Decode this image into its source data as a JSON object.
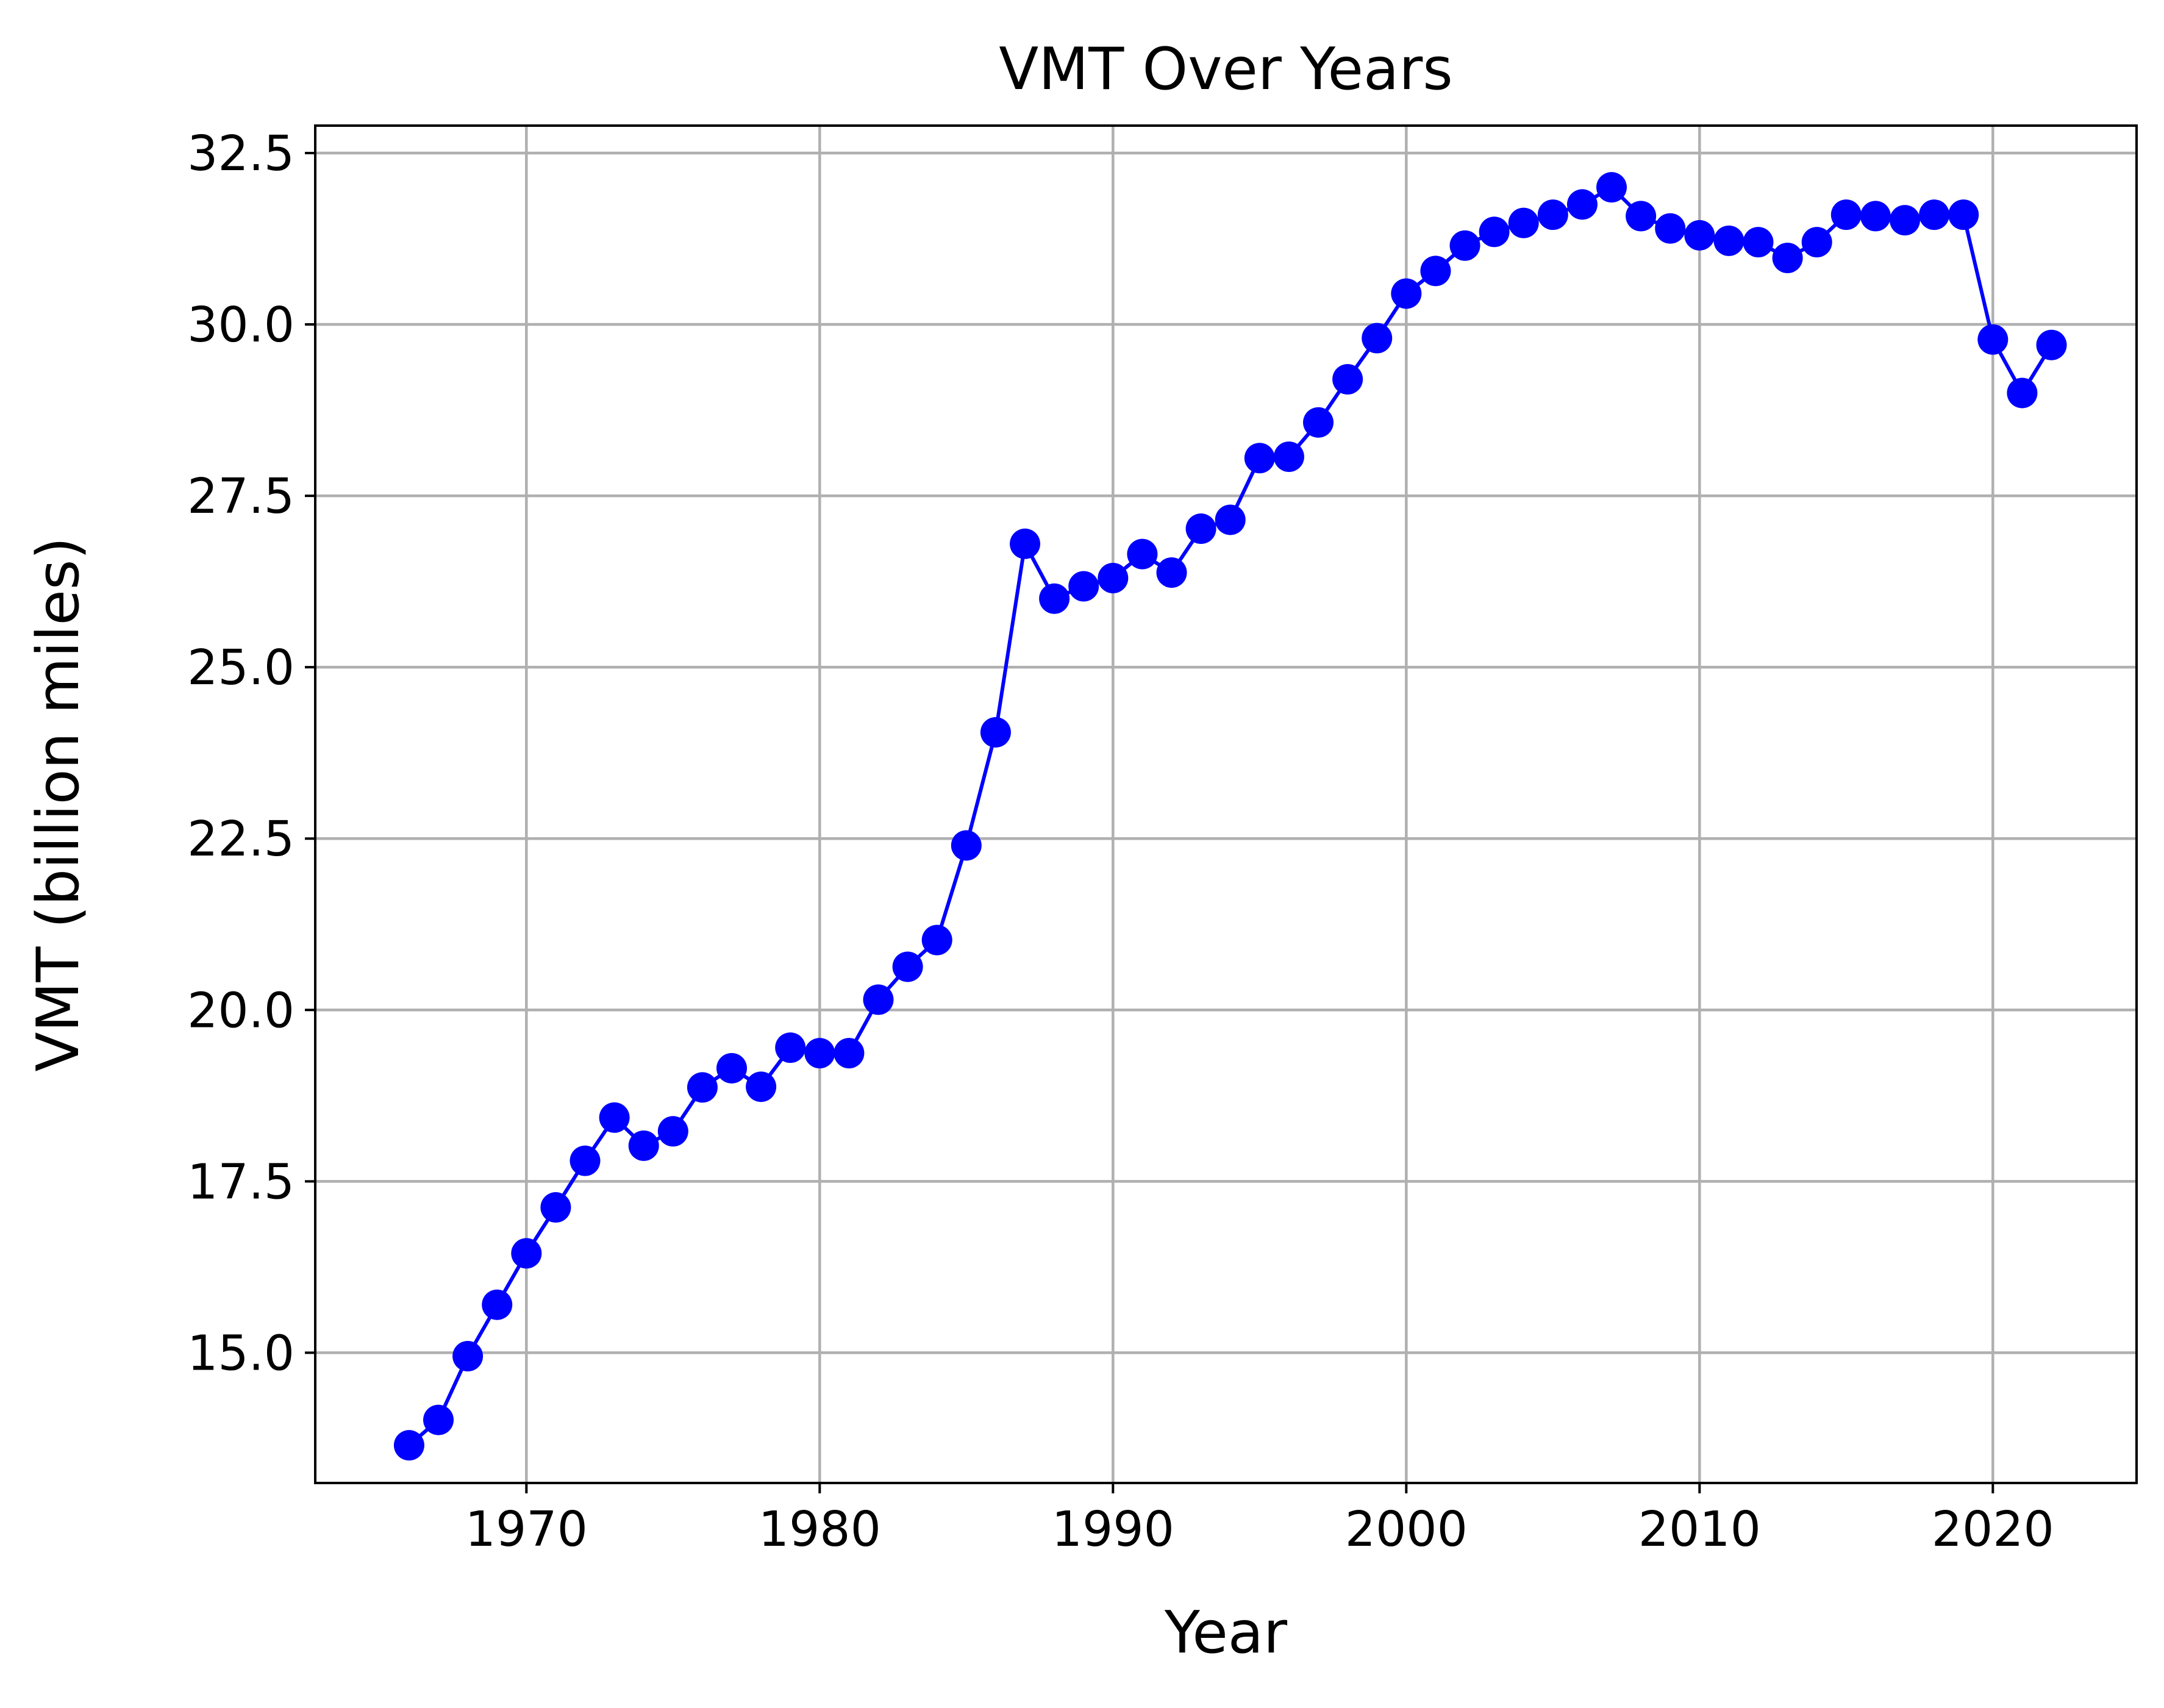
{
  "chart_data": {
    "type": "line",
    "title": "VMT Over Years",
    "xlabel": "Year",
    "ylabel": "VMT (billion miles)",
    "xlim": [
      1962.8,
      2024.9
    ],
    "ylim": [
      13.1,
      32.9
    ],
    "xticks": [
      1970,
      1980,
      1990,
      2000,
      2010,
      2020
    ],
    "yticks": [
      15.0,
      17.5,
      20.0,
      22.5,
      25.0,
      27.5,
      30.0,
      32.5
    ],
    "grid": true,
    "legend": "none",
    "series": [
      {
        "color": "#0000ff",
        "marker": "circle",
        "x": [
          1966,
          1967,
          1968,
          1969,
          1970,
          1971,
          1972,
          1973,
          1974,
          1975,
          1976,
          1977,
          1978,
          1979,
          1980,
          1981,
          1982,
          1983,
          1984,
          1985,
          1986,
          1987,
          1988,
          1989,
          1990,
          1991,
          1992,
          1993,
          1994,
          1995,
          1996,
          1997,
          1998,
          1999,
          2000,
          2001,
          2002,
          2003,
          2004,
          2005,
          2006,
          2007,
          2008,
          2009,
          2010,
          2011,
          2012,
          2013,
          2014,
          2015,
          2016,
          2017,
          2018,
          2019,
          2020,
          2021,
          2022
        ],
        "y": [
          13.65,
          14.02,
          14.95,
          15.7,
          16.45,
          17.12,
          17.8,
          18.43,
          18.02,
          18.23,
          18.87,
          19.15,
          18.88,
          19.45,
          19.37,
          19.37,
          20.15,
          20.63,
          21.02,
          22.4,
          24.05,
          26.8,
          26.0,
          26.18,
          26.3,
          26.65,
          26.38,
          27.02,
          27.15,
          28.05,
          28.07,
          28.57,
          29.2,
          29.8,
          30.45,
          30.78,
          31.15,
          31.35,
          31.48,
          31.6,
          31.75,
          32.0,
          31.58,
          31.4,
          31.3,
          31.22,
          31.2,
          30.97,
          31.2,
          31.6,
          31.58,
          31.52,
          31.6,
          31.6,
          29.78,
          29.0,
          29.7
        ]
      }
    ]
  }
}
